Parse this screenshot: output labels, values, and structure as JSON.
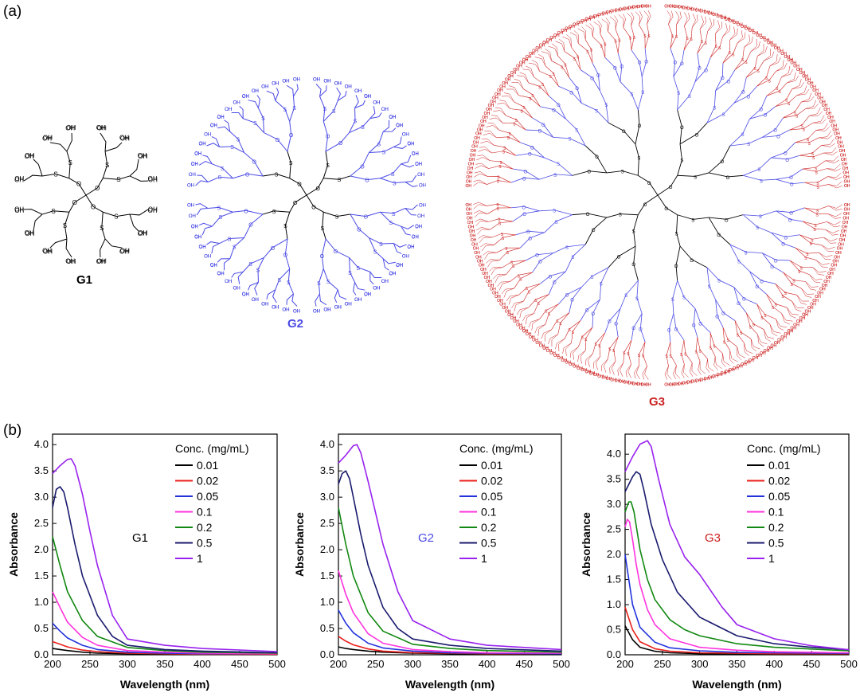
{
  "panels": {
    "a": "(a)",
    "b": "(b)"
  },
  "structures": [
    {
      "label": "G1",
      "color": "#000000"
    },
    {
      "label": "G2",
      "color": "#4a4ae6"
    },
    {
      "label": "G3",
      "color": "#cc1f1f"
    }
  ],
  "chart_data": [
    {
      "type": "line",
      "annotation": "G1",
      "annotation_color": "#000000",
      "xlabel": "Wavelength (nm)",
      "ylabel": "Absorbance",
      "xlim": [
        200,
        500
      ],
      "ylim": [
        0,
        4.2
      ],
      "xticks": [
        "200",
        "250",
        "300",
        "350",
        "400",
        "450",
        "500"
      ],
      "yticks": [
        "0.0",
        "0.5",
        "1.0",
        "1.5",
        "2.0",
        "2.5",
        "3.0",
        "3.5",
        "4.0"
      ],
      "legend_title": "Conc. (mg/mL)",
      "legend_position": "top-right",
      "series": [
        {
          "name": "0.01",
          "color": "#000000",
          "x": [
            200,
            210,
            220,
            240,
            260,
            300,
            350,
            400,
            500
          ],
          "y": [
            0.12,
            0.1,
            0.08,
            0.05,
            0.03,
            0.02,
            0.01,
            0.01,
            0.01
          ]
        },
        {
          "name": "0.02",
          "color": "#e8201b",
          "x": [
            200,
            210,
            220,
            240,
            260,
            300,
            350,
            400,
            500
          ],
          "y": [
            0.25,
            0.2,
            0.15,
            0.09,
            0.06,
            0.03,
            0.02,
            0.01,
            0.01
          ]
        },
        {
          "name": "0.05",
          "color": "#2233dd",
          "x": [
            200,
            210,
            220,
            240,
            260,
            300,
            350,
            400,
            500
          ],
          "y": [
            0.6,
            0.45,
            0.32,
            0.18,
            0.1,
            0.05,
            0.03,
            0.02,
            0.02
          ]
        },
        {
          "name": "0.1",
          "color": "#ff33dd",
          "x": [
            200,
            210,
            220,
            240,
            260,
            300,
            350,
            400,
            500
          ],
          "y": [
            1.2,
            0.9,
            0.62,
            0.33,
            0.18,
            0.08,
            0.05,
            0.03,
            0.02
          ]
        },
        {
          "name": "0.2",
          "color": "#118811",
          "x": [
            200,
            210,
            220,
            240,
            260,
            300,
            350,
            400,
            500
          ],
          "y": [
            2.25,
            1.7,
            1.2,
            0.65,
            0.35,
            0.14,
            0.08,
            0.05,
            0.03
          ]
        },
        {
          "name": "0.5",
          "color": "#1a1a6e",
          "x": [
            200,
            205,
            210,
            215,
            220,
            230,
            240,
            260,
            280,
            300,
            350,
            400,
            500
          ],
          "y": [
            2.8,
            3.15,
            3.2,
            3.1,
            2.8,
            2.1,
            1.5,
            0.75,
            0.35,
            0.18,
            0.1,
            0.07,
            0.04
          ]
        },
        {
          "name": "1",
          "color": "#9922ee",
          "x": [
            200,
            210,
            220,
            225,
            230,
            240,
            250,
            260,
            280,
            300,
            350,
            400,
            500
          ],
          "y": [
            3.45,
            3.6,
            3.72,
            3.73,
            3.6,
            3.05,
            2.35,
            1.7,
            0.75,
            0.3,
            0.18,
            0.12,
            0.06
          ]
        }
      ]
    },
    {
      "type": "line",
      "annotation": "G2",
      "annotation_color": "#4a4ae6",
      "xlabel": "Wavelength (nm)",
      "ylabel": "Absorbance",
      "xlim": [
        200,
        500
      ],
      "ylim": [
        0,
        4.2
      ],
      "xticks": [
        "200",
        "250",
        "300",
        "350",
        "400",
        "450",
        "500"
      ],
      "yticks": [
        "0.0",
        "0.5",
        "1.0",
        "1.5",
        "2.0",
        "2.5",
        "3.0",
        "3.5",
        "4.0"
      ],
      "legend_title": "Conc. (mg/mL)",
      "legend_position": "top-right",
      "series": [
        {
          "name": "0.01",
          "color": "#000000",
          "x": [
            200,
            210,
            220,
            240,
            260,
            300,
            350,
            400,
            500
          ],
          "y": [
            0.15,
            0.12,
            0.1,
            0.07,
            0.05,
            0.03,
            0.02,
            0.02,
            0.01
          ]
        },
        {
          "name": "0.02",
          "color": "#e8201b",
          "x": [
            200,
            210,
            220,
            240,
            260,
            300,
            350,
            400,
            500
          ],
          "y": [
            0.35,
            0.26,
            0.19,
            0.11,
            0.07,
            0.04,
            0.03,
            0.02,
            0.02
          ]
        },
        {
          "name": "0.05",
          "color": "#2233dd",
          "x": [
            200,
            210,
            220,
            240,
            260,
            300,
            350,
            400,
            500
          ],
          "y": [
            0.85,
            0.6,
            0.42,
            0.22,
            0.13,
            0.07,
            0.04,
            0.03,
            0.02
          ]
        },
        {
          "name": "0.1",
          "color": "#ff33dd",
          "x": [
            200,
            210,
            220,
            240,
            260,
            300,
            350,
            400,
            500
          ],
          "y": [
            1.6,
            1.15,
            0.8,
            0.4,
            0.22,
            0.1,
            0.06,
            0.04,
            0.03
          ]
        },
        {
          "name": "0.2",
          "color": "#118811",
          "x": [
            200,
            210,
            220,
            240,
            260,
            300,
            350,
            400,
            500
          ],
          "y": [
            2.8,
            2.1,
            1.5,
            0.8,
            0.45,
            0.2,
            0.12,
            0.08,
            0.05
          ]
        },
        {
          "name": "0.5",
          "color": "#1a1a6e",
          "x": [
            200,
            205,
            210,
            215,
            220,
            230,
            240,
            260,
            280,
            300,
            350,
            400,
            500
          ],
          "y": [
            3.25,
            3.45,
            3.5,
            3.35,
            3.0,
            2.3,
            1.7,
            0.9,
            0.5,
            0.3,
            0.18,
            0.12,
            0.07
          ]
        },
        {
          "name": "1",
          "color": "#9922ee",
          "x": [
            200,
            210,
            220,
            225,
            230,
            240,
            250,
            260,
            280,
            300,
            350,
            400,
            500
          ],
          "y": [
            3.65,
            3.8,
            3.98,
            4.0,
            3.85,
            3.3,
            2.7,
            2.1,
            1.2,
            0.65,
            0.3,
            0.18,
            0.1
          ]
        }
      ]
    },
    {
      "type": "line",
      "annotation": "G3",
      "annotation_color": "#cc1f1f",
      "xlabel": "Wavelength (nm)",
      "ylabel": "Absorbance",
      "xlim": [
        200,
        500
      ],
      "ylim": [
        0,
        4.4
      ],
      "xticks": [
        "200",
        "250",
        "300",
        "350",
        "400",
        "450",
        "500"
      ],
      "yticks": [
        "0.0",
        "0.5",
        "1.0",
        "1.5",
        "2.0",
        "2.5",
        "3.0",
        "3.5",
        "4.0"
      ],
      "legend_title": "Conc. (mg/mL)",
      "legend_position": "top-right",
      "series": [
        {
          "name": "0.01",
          "color": "#000000",
          "x": [
            200,
            210,
            220,
            240,
            260,
            300,
            350,
            400,
            500
          ],
          "y": [
            0.58,
            0.3,
            0.15,
            0.07,
            0.04,
            0.02,
            0.02,
            0.01,
            0.01
          ]
        },
        {
          "name": "0.02",
          "color": "#e8201b",
          "x": [
            200,
            210,
            220,
            240,
            260,
            300,
            350,
            400,
            500
          ],
          "y": [
            0.95,
            0.5,
            0.26,
            0.12,
            0.07,
            0.04,
            0.03,
            0.02,
            0.02
          ]
        },
        {
          "name": "0.05",
          "color": "#2233dd",
          "x": [
            200,
            203,
            210,
            220,
            240,
            260,
            300,
            350,
            400,
            500
          ],
          "y": [
            2.0,
            1.7,
            1.0,
            0.55,
            0.25,
            0.14,
            0.08,
            0.05,
            0.04,
            0.03
          ]
        },
        {
          "name": "0.1",
          "color": "#ff33dd",
          "x": [
            200,
            203,
            206,
            210,
            215,
            220,
            230,
            240,
            260,
            300,
            350,
            400,
            500
          ],
          "y": [
            2.55,
            2.7,
            2.65,
            2.3,
            1.8,
            1.4,
            0.9,
            0.6,
            0.32,
            0.15,
            0.09,
            0.06,
            0.04
          ]
        },
        {
          "name": "0.2",
          "color": "#118811",
          "x": [
            200,
            205,
            208,
            212,
            220,
            230,
            240,
            260,
            280,
            300,
            350,
            400,
            500
          ],
          "y": [
            2.85,
            3.05,
            3.05,
            2.85,
            2.1,
            1.5,
            1.1,
            0.7,
            0.5,
            0.38,
            0.22,
            0.15,
            0.08
          ]
        },
        {
          "name": "0.5",
          "color": "#1a1a6e",
          "x": [
            200,
            210,
            215,
            220,
            225,
            235,
            250,
            270,
            300,
            350,
            400,
            450,
            500
          ],
          "y": [
            3.25,
            3.55,
            3.65,
            3.6,
            3.3,
            2.6,
            1.9,
            1.25,
            0.75,
            0.38,
            0.22,
            0.15,
            0.1
          ]
        },
        {
          "name": "1",
          "color": "#9922ee",
          "x": [
            200,
            210,
            220,
            230,
            235,
            245,
            260,
            280,
            300,
            330,
            350,
            400,
            450,
            500
          ],
          "y": [
            3.65,
            3.95,
            4.2,
            4.27,
            4.15,
            3.5,
            2.6,
            1.95,
            1.6,
            0.95,
            0.6,
            0.32,
            0.18,
            0.1
          ]
        }
      ]
    }
  ]
}
